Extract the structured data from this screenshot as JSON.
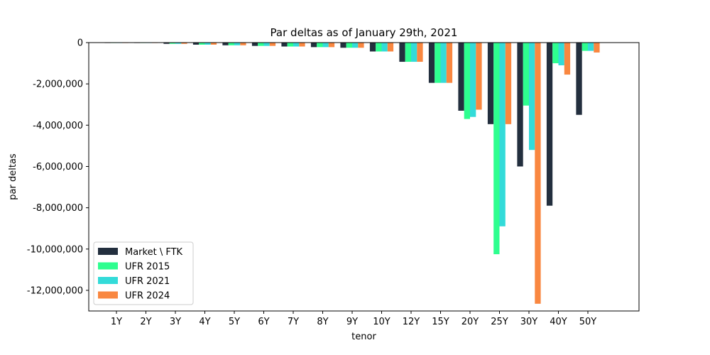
{
  "chart_data": {
    "type": "bar",
    "title": "Par deltas as of January 29th, 2021",
    "xlabel": "tenor",
    "ylabel": "par deltas",
    "categories": [
      "1Y",
      "2Y",
      "3Y",
      "4Y",
      "5Y",
      "6Y",
      "7Y",
      "8Y",
      "9Y",
      "10Y",
      "12Y",
      "15Y",
      "20Y",
      "25Y",
      "30Y",
      "40Y",
      "50Y"
    ],
    "ylim": [
      -13000000,
      0
    ],
    "yticks": [
      0,
      -2000000,
      -4000000,
      -6000000,
      -8000000,
      -10000000,
      -12000000
    ],
    "ytick_labels": [
      "0",
      "-2,000,000",
      "-4,000,000",
      "-6,000,000",
      "-8,000,000",
      "-10,000,000",
      "-12,000,000"
    ],
    "legend_position": "lower-left",
    "grid": false,
    "series": [
      {
        "name": "Market \\ FTK",
        "color": "#232f3e",
        "values": [
          -5000,
          -15000,
          -60000,
          -100000,
          -130000,
          -160000,
          -190000,
          -220000,
          -250000,
          -430000,
          -930000,
          -1950000,
          -3300000,
          -3950000,
          -6000000,
          -7900000,
          -3500000
        ]
      },
      {
        "name": "UFR 2015",
        "color": "#2efe8f",
        "values": [
          -5000,
          -15000,
          -60000,
          -100000,
          -130000,
          -160000,
          -190000,
          -220000,
          -250000,
          -430000,
          -930000,
          -1950000,
          -3700000,
          -10250000,
          -3050000,
          -1000000,
          -400000
        ]
      },
      {
        "name": "UFR 2021",
        "color": "#33dbd9",
        "values": [
          -5000,
          -15000,
          -60000,
          -100000,
          -130000,
          -160000,
          -190000,
          -220000,
          -250000,
          -430000,
          -930000,
          -1950000,
          -3600000,
          -8900000,
          -5200000,
          -1100000,
          -400000
        ]
      },
      {
        "name": "UFR 2024",
        "color": "#f98740",
        "values": [
          -5000,
          -15000,
          -60000,
          -100000,
          -130000,
          -160000,
          -190000,
          -220000,
          -250000,
          -430000,
          -930000,
          -1950000,
          -3250000,
          -3950000,
          -12650000,
          -1550000,
          -480000
        ]
      }
    ]
  }
}
